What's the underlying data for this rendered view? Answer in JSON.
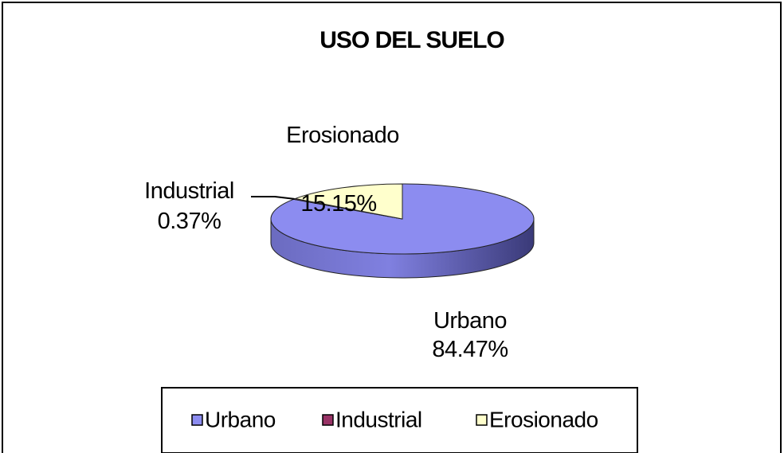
{
  "chart_data": {
    "type": "pie",
    "title": "USO DEL SUELO",
    "categories": [
      "Urbano",
      "Industrial",
      "Erosionado"
    ],
    "values": [
      84.47,
      0.37,
      15.15
    ],
    "value_labels": [
      "84.47%",
      "0.37%",
      "15.15%"
    ],
    "colors": [
      "#8c8cf0",
      "#993366",
      "#ffffcc"
    ],
    "legend": "bottom"
  }
}
